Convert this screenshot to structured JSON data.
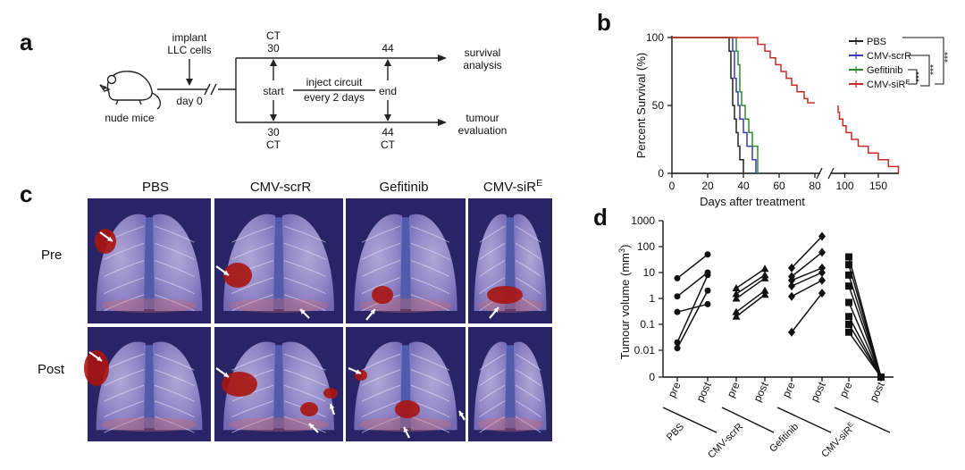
{
  "panels": {
    "a": {
      "letter": "a",
      "mouse_label": "nude mice",
      "implant_line1": "implant",
      "implant_line2": "LLC cells",
      "day0": "day 0",
      "ct_top": "CT",
      "day30_top": "30",
      "day44_top": "44",
      "start": "start",
      "end": "end",
      "inject_line1": "inject circuit",
      "inject_line2": "every 2 days",
      "day30_bottom": "30",
      "day44_bottom": "44",
      "ct_bottom_left": "CT",
      "ct_bottom_right": "CT",
      "survival_line1": "survival",
      "survival_line2": "analysis",
      "tumour_line1": "tumour",
      "tumour_line2": "evaluation"
    },
    "b": {
      "letter": "b",
      "significance": [
        "***",
        "***",
        "***"
      ]
    },
    "c": {
      "letter": "c",
      "columns": [
        {
          "label": "PBS"
        },
        {
          "label": "CMV-scrR"
        },
        {
          "label": "Gefitinib"
        },
        {
          "label": "CMV-siR",
          "sup": "E"
        }
      ],
      "rows": [
        "Pre",
        "Post"
      ]
    },
    "d": {
      "letter": "d"
    }
  },
  "chart_data": [
    {
      "type": "line",
      "panel": "b",
      "xlabel": "Days after treatment",
      "ylabel": "Percent Survival (%)",
      "xticks": [
        "0",
        "20",
        "40",
        "60",
        "80",
        "100",
        "150"
      ],
      "yticks": [
        "0",
        "50",
        "100"
      ],
      "ylim": [
        0,
        100
      ],
      "axis_break": true,
      "legend_placement": "top-right",
      "series": [
        {
          "name": "PBS",
          "color": "#222222",
          "points": [
            [
              0,
              100
            ],
            [
              32,
              100
            ],
            [
              32,
              90
            ],
            [
              33,
              80
            ],
            [
              33,
              70
            ],
            [
              34,
              60
            ],
            [
              34,
              50
            ],
            [
              35,
              40
            ],
            [
              36,
              30
            ],
            [
              37,
              20
            ],
            [
              38,
              10
            ],
            [
              40,
              0
            ]
          ]
        },
        {
          "name": "CMV-scrR",
          "color": "#3b3bb5",
          "points": [
            [
              0,
              100
            ],
            [
              34,
              100
            ],
            [
              34,
              90
            ],
            [
              35,
              80
            ],
            [
              35,
              70
            ],
            [
              36,
              60
            ],
            [
              37,
              50
            ],
            [
              38,
              40
            ],
            [
              40,
              30
            ],
            [
              42,
              20
            ],
            [
              45,
              10
            ],
            [
              47,
              0
            ]
          ]
        },
        {
          "name": "Gefitinib",
          "color": "#2e8b2e",
          "points": [
            [
              0,
              100
            ],
            [
              35,
              100
            ],
            [
              36,
              90
            ],
            [
              37,
              80
            ],
            [
              38,
              60
            ],
            [
              39,
              50
            ],
            [
              41,
              40
            ],
            [
              43,
              30
            ],
            [
              45,
              20
            ],
            [
              48,
              0
            ]
          ]
        },
        {
          "name": "CMV-siR",
          "sup": "E",
          "color": "#cc2a2a",
          "points": [
            [
              0,
              100
            ],
            [
              44,
              100
            ],
            [
              48,
              95
            ],
            [
              52,
              90
            ],
            [
              55,
              85
            ],
            [
              58,
              80
            ],
            [
              61,
              75
            ],
            [
              64,
              70
            ],
            [
              67,
              65
            ],
            [
              70,
              60
            ],
            [
              74,
              55
            ],
            [
              76,
              52
            ],
            [
              88,
              50
            ],
            [
              90,
              45
            ],
            [
              92,
              40
            ],
            [
              97,
              35
            ],
            [
              102,
              30
            ],
            [
              110,
              25
            ],
            [
              120,
              20
            ],
            [
              135,
              15
            ],
            [
              150,
              10
            ],
            [
              165,
              5
            ],
            [
              180,
              0
            ]
          ]
        }
      ]
    },
    {
      "type": "scatter",
      "panel": "d",
      "ylabel": "Tumour volume (mm",
      "ylabel_sup": "3",
      "ylabel_end": ")",
      "yscale": "log",
      "yticks": [
        "0",
        "0.01",
        "0.1",
        "1",
        "10",
        "100",
        "1000"
      ],
      "xticks": [
        "pre",
        "post"
      ],
      "groups": [
        {
          "name": "PBS",
          "marker": "circle",
          "pairs": [
            [
              0.012,
              2
            ],
            [
              0.02,
              8
            ],
            [
              0.3,
              0.6
            ],
            [
              1.2,
              10
            ],
            [
              6,
              50
            ]
          ]
        },
        {
          "name": "CMV-scrR",
          "marker": "triangle",
          "pairs": [
            [
              0.2,
              1.4
            ],
            [
              0.3,
              2
            ],
            [
              1,
              6
            ],
            [
              1.5,
              8
            ],
            [
              2.5,
              14
            ]
          ]
        },
        {
          "name": "Gefitinib",
          "marker": "diamond",
          "pairs": [
            [
              0.05,
              1.6
            ],
            [
              1.2,
              5
            ],
            [
              3,
              10
            ],
            [
              5,
              15
            ],
            [
              7,
              60
            ],
            [
              15,
              250
            ]
          ]
        },
        {
          "name": "CMV-siR",
          "sup": "E",
          "marker": "square",
          "pairs": [
            [
              0.05,
              0
            ],
            [
              0.1,
              0
            ],
            [
              0.2,
              0
            ],
            [
              0.7,
              0
            ],
            [
              3,
              0
            ],
            [
              8,
              0
            ],
            [
              20,
              0
            ],
            [
              40,
              0
            ]
          ]
        }
      ]
    }
  ]
}
